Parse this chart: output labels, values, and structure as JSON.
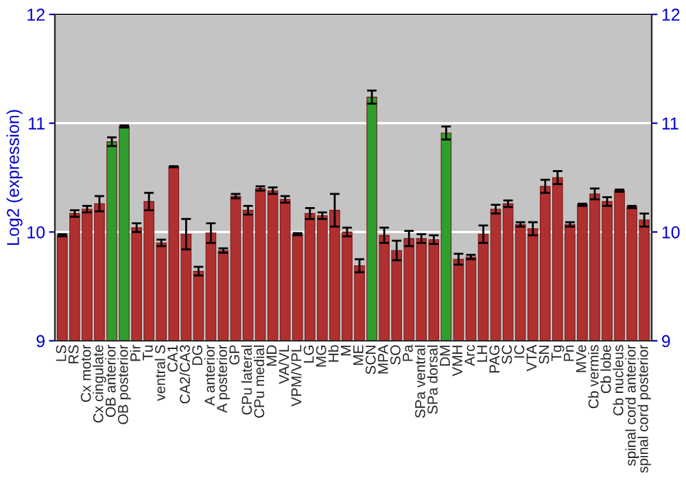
{
  "chart_data": {
    "type": "bar",
    "ylabel": "Log2 (expression)",
    "categories": [
      "LS",
      "RS",
      "Cx motor",
      "Cx cingulate",
      "OB anterior",
      "OB posterior",
      "Pir",
      "Tu",
      "ventral S",
      "CA1",
      "CA2/CA3",
      "DG",
      "A anterior",
      "A posterior",
      "GP",
      "CPu lateral",
      "CPu medial",
      "MD",
      "VA/VL",
      "VPM/VPL",
      "LG",
      "MG",
      "Hb",
      "M",
      "ME",
      "SCN",
      "MPA",
      "SO",
      "Pa",
      "SPa ventral",
      "SPa dorsal",
      "DM",
      "VMH",
      "Arc",
      "LH",
      "PAG",
      "SC",
      "IC",
      "VTA",
      "SN",
      "Tg",
      "Pn",
      "MVe",
      "Cb vermis",
      "Cb lobe",
      "Cb nucleus",
      "spinal cord anterior",
      "spinal cord posterior"
    ],
    "values": [
      9.97,
      10.17,
      10.21,
      10.26,
      10.83,
      10.97,
      10.04,
      10.28,
      9.9,
      10.6,
      9.98,
      9.64,
      9.99,
      9.83,
      10.33,
      10.2,
      10.4,
      10.38,
      10.3,
      9.98,
      10.17,
      10.15,
      10.2,
      10.0,
      9.69,
      11.24,
      9.97,
      9.83,
      9.94,
      9.94,
      9.93,
      10.91,
      9.75,
      9.77,
      9.98,
      10.21,
      10.26,
      10.07,
      10.03,
      10.42,
      10.5,
      10.07,
      10.25,
      10.35,
      10.28,
      10.38,
      10.23,
      10.11
    ],
    "errors": [
      0.01,
      0.03,
      0.03,
      0.07,
      0.04,
      0.01,
      0.04,
      0.08,
      0.03,
      0.005,
      0.14,
      0.04,
      0.09,
      0.02,
      0.02,
      0.04,
      0.02,
      0.03,
      0.03,
      0.01,
      0.05,
      0.03,
      0.15,
      0.04,
      0.06,
      0.06,
      0.07,
      0.09,
      0.07,
      0.04,
      0.04,
      0.06,
      0.05,
      0.02,
      0.08,
      0.04,
      0.03,
      0.02,
      0.06,
      0.06,
      0.06,
      0.02,
      0.01,
      0.05,
      0.04,
      0.01,
      0.01,
      0.06
    ],
    "colors": [
      "#b03030",
      "#b03030",
      "#b03030",
      "#b03030",
      "#2e9e2e",
      "#2e9e2e",
      "#b03030",
      "#b03030",
      "#b03030",
      "#b03030",
      "#b03030",
      "#b03030",
      "#b03030",
      "#b03030",
      "#b03030",
      "#b03030",
      "#b03030",
      "#b03030",
      "#b03030",
      "#b03030",
      "#b03030",
      "#b03030",
      "#b03030",
      "#b03030",
      "#b03030",
      "#2e9e2e",
      "#b03030",
      "#b03030",
      "#b03030",
      "#b03030",
      "#b03030",
      "#2e9e2e",
      "#b03030",
      "#b03030",
      "#b03030",
      "#b03030",
      "#b03030",
      "#b03030",
      "#b03030",
      "#b03030",
      "#b03030",
      "#b03030",
      "#b03030",
      "#b03030",
      "#b03030",
      "#b03030",
      "#b03030",
      "#b03030"
    ],
    "ylim": [
      9,
      12
    ],
    "yticks": [
      9,
      10,
      11,
      12
    ],
    "y2lim": [
      9,
      12
    ],
    "y2ticks": [
      9,
      10,
      11,
      12
    ],
    "grid": "y",
    "legend": false
  }
}
